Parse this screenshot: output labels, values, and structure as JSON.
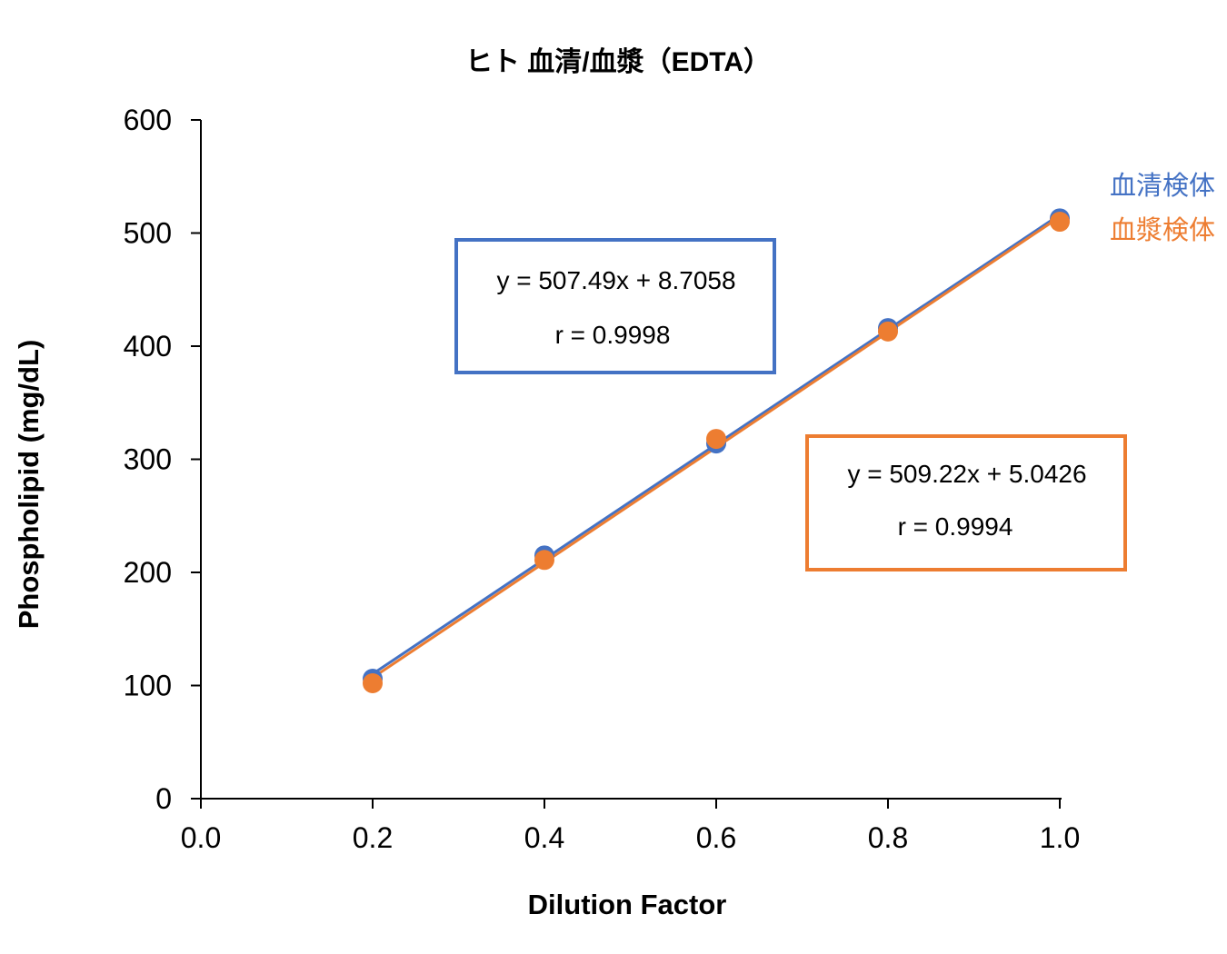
{
  "chart_data": {
    "type": "scatter",
    "title": "ヒト 血清/血漿（EDTA）",
    "xlabel": "Dilution Factor",
    "ylabel": "Phospholipid (mg/dL)",
    "xlim": [
      0.0,
      1.0
    ],
    "ylim": [
      0,
      600
    ],
    "xticks": [
      0.0,
      0.2,
      0.4,
      0.6,
      0.8,
      1.0
    ],
    "xtick_labels": [
      "0.0",
      "0.2",
      "0.4",
      "0.6",
      "0.8",
      "1.0"
    ],
    "yticks": [
      0,
      100,
      200,
      300,
      400,
      500,
      600
    ],
    "ytick_labels": [
      "0",
      "100",
      "200",
      "300",
      "400",
      "500",
      "600"
    ],
    "grid": false,
    "legend_position": "right",
    "series": [
      {
        "name": "血清検体",
        "color": "#4472C4",
        "x": [
          0.2,
          0.4,
          0.6,
          0.8,
          1.0
        ],
        "y": [
          106,
          215,
          314,
          416,
          513
        ],
        "trendline": {
          "slope": 507.49,
          "intercept": 8.7058
        },
        "equation": "y = 507.49x + 8.7058",
        "r_text": "r = 0.9998"
      },
      {
        "name": "血漿検体",
        "color": "#ED7D31",
        "x": [
          0.2,
          0.4,
          0.6,
          0.8,
          1.0
        ],
        "y": [
          102,
          211,
          318,
          413,
          510
        ],
        "trendline": {
          "slope": 509.22,
          "intercept": 5.0426
        },
        "equation": "y = 509.22x + 5.0426",
        "r_text": "r = 0.9994"
      }
    ]
  }
}
